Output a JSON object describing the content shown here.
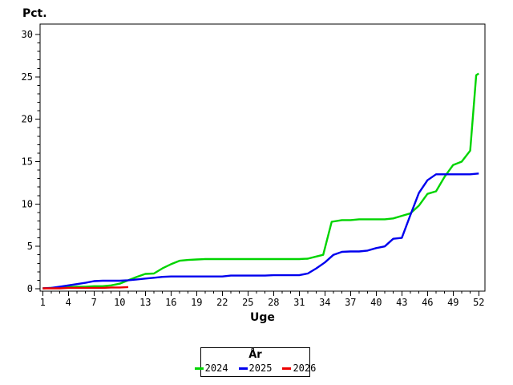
{
  "page": {
    "background": "#ffffff",
    "axis_color": "#000000"
  },
  "chart_data": {
    "type": "line",
    "title": "",
    "ylabel": "Pct.",
    "xlabel": "Uge",
    "xlim": [
      1,
      52
    ],
    "ylim": [
      0,
      30
    ],
    "x_ticks_major": [
      1,
      4,
      7,
      10,
      13,
      16,
      19,
      22,
      25,
      28,
      31,
      34,
      37,
      40,
      43,
      46,
      49,
      52
    ],
    "x_minor_step": 1,
    "y_ticks_major": [
      0,
      5,
      10,
      15,
      20,
      25,
      30
    ],
    "y_minor_step": 1,
    "grid": false,
    "legend": {
      "title": "År",
      "position": "bottom-center"
    },
    "series": [
      {
        "name": "2024",
        "color": "#00d400",
        "x": [
          1,
          2,
          3,
          4,
          5,
          6,
          7,
          8,
          9,
          10,
          11,
          12,
          13,
          14,
          15,
          16,
          17,
          18,
          19,
          20,
          21,
          22,
          23,
          24,
          25,
          26,
          27,
          28,
          29,
          30,
          31,
          32,
          33,
          33.8,
          34.8,
          36,
          37,
          38,
          39,
          40,
          41,
          42,
          43,
          44,
          45,
          46,
          47,
          48,
          49,
          50,
          51,
          51.7,
          52
        ],
        "values": [
          0.05,
          0.1,
          0.1,
          0.2,
          0.25,
          0.25,
          0.3,
          0.3,
          0.4,
          0.6,
          1.0,
          1.4,
          1.75,
          1.8,
          2.4,
          2.9,
          3.3,
          3.4,
          3.45,
          3.5,
          3.5,
          3.5,
          3.5,
          3.5,
          3.5,
          3.5,
          3.5,
          3.5,
          3.5,
          3.5,
          3.5,
          3.55,
          3.8,
          4.0,
          7.9,
          8.1,
          8.1,
          8.2,
          8.2,
          8.2,
          8.2,
          8.3,
          8.6,
          8.9,
          9.8,
          11.2,
          11.5,
          13.2,
          14.6,
          15.0,
          16.3,
          25.2,
          25.4
        ]
      },
      {
        "name": "2025",
        "color": "#0000ee",
        "x": [
          1,
          2,
          3,
          4,
          5,
          6,
          7,
          8,
          9,
          10,
          11,
          12,
          13,
          14,
          15,
          16,
          17,
          18,
          19,
          20,
          21,
          22,
          23,
          24,
          25,
          26,
          27,
          28,
          29,
          30,
          31,
          32,
          33,
          34,
          35,
          36,
          37,
          38,
          39,
          40,
          41,
          42,
          43,
          44,
          45,
          46,
          47,
          48,
          49,
          50,
          51,
          52
        ],
        "values": [
          0.05,
          0.1,
          0.25,
          0.4,
          0.55,
          0.7,
          0.9,
          0.95,
          0.95,
          0.95,
          1.0,
          1.1,
          1.2,
          1.3,
          1.4,
          1.45,
          1.45,
          1.45,
          1.45,
          1.45,
          1.45,
          1.45,
          1.55,
          1.55,
          1.55,
          1.55,
          1.55,
          1.6,
          1.6,
          1.6,
          1.6,
          1.8,
          2.4,
          3.1,
          4.0,
          4.35,
          4.4,
          4.4,
          4.5,
          4.8,
          5.0,
          5.9,
          6.0,
          8.7,
          11.3,
          12.8,
          13.5,
          13.5,
          13.5,
          13.5,
          13.5,
          13.6
        ]
      },
      {
        "name": "2026",
        "color": "#ee0000",
        "x": [
          1,
          2,
          3,
          4,
          5,
          6,
          7,
          8,
          9,
          10,
          11
        ],
        "values": [
          0.05,
          0.05,
          0.05,
          0.1,
          0.1,
          0.1,
          0.1,
          0.1,
          0.15,
          0.15,
          0.2
        ]
      }
    ]
  }
}
